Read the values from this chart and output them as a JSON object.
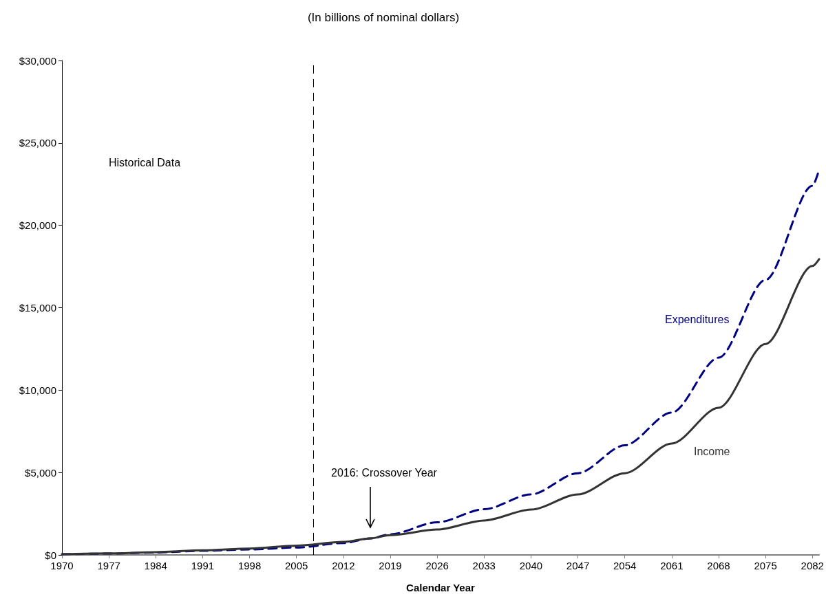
{
  "chart_data": {
    "type": "line",
    "title": "(In billions of nominal dollars)",
    "xlabel": "Calendar Year",
    "xlim": [
      1970,
      2083
    ],
    "xticks": [
      1970,
      1977,
      1984,
      1991,
      1998,
      2005,
      2012,
      2019,
      2026,
      2033,
      2040,
      2047,
      2054,
      2061,
      2068,
      2075,
      2082
    ],
    "ylim": [
      0,
      30000
    ],
    "yticks": [
      {
        "value": 0,
        "label": "$0"
      },
      {
        "value": 5000,
        "label": "$5,000"
      },
      {
        "value": 10000,
        "label": "$10,000"
      },
      {
        "value": 15000,
        "label": "$15,000"
      },
      {
        "value": 20000,
        "label": "$20,000"
      },
      {
        "value": 25000,
        "label": "$25,000"
      },
      {
        "value": 30000,
        "label": "$30,000"
      }
    ],
    "grid": false,
    "legend": false,
    "series": [
      {
        "name": "Expenditures",
        "color": "#000080",
        "line_style": "dashed",
        "x": [
          1970,
          1977,
          1984,
          1991,
          1998,
          2005,
          2012,
          2016,
          2019,
          2026,
          2033,
          2040,
          2047,
          2054,
          2061,
          2068,
          2075,
          2082,
          2083
        ],
        "values": [
          40,
          80,
          150,
          250,
          330,
          450,
          720,
          1000,
          1250,
          1980,
          2770,
          3670,
          4960,
          6650,
          8640,
          11970,
          16690,
          22400,
          23380
        ]
      },
      {
        "name": "Income",
        "color": "#333333",
        "line_style": "solid",
        "x": [
          1970,
          1977,
          1984,
          1991,
          1998,
          2005,
          2012,
          2016,
          2019,
          2026,
          2033,
          2040,
          2047,
          2054,
          2061,
          2068,
          2075,
          2082,
          2083
        ],
        "values": [
          40,
          90,
          170,
          280,
          390,
          560,
          790,
          1000,
          1200,
          1540,
          2090,
          2750,
          3670,
          4960,
          6760,
          8930,
          12800,
          17530,
          17950
        ]
      }
    ],
    "ref_lines": [
      {
        "axis": "x",
        "value": 2007.5,
        "color": "#000000",
        "line_style": "dashed"
      }
    ],
    "annotations": [
      "Historical Data",
      "2016: Crossover Year"
    ]
  }
}
